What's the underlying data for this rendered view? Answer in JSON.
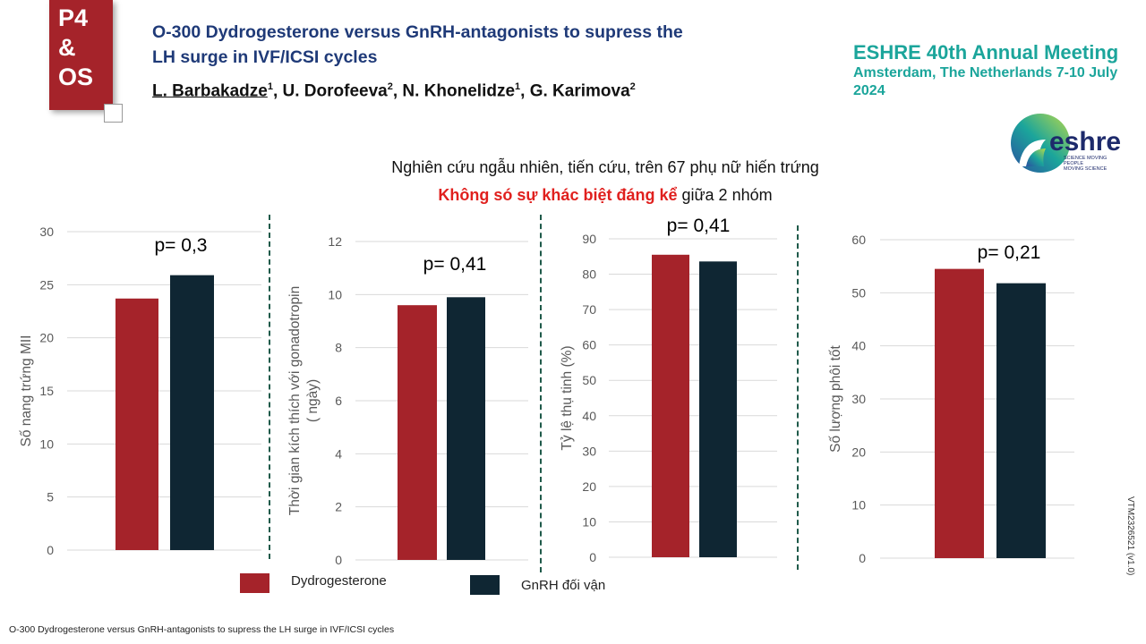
{
  "badge": {
    "line1": "P4",
    "line2": "&",
    "line3": "OS"
  },
  "title": {
    "line1": "O-300   Dydrogesterone versus GnRH-antagonists to supress the",
    "line2": "LH surge in IVF/ICSI cycles"
  },
  "authors": [
    {
      "name": "L. Barbakadze",
      "sup": "1"
    },
    {
      "name": "U. Dorofeeva",
      "sup": "2"
    },
    {
      "name": "N. Khonelidze",
      "sup": "1"
    },
    {
      "name": "G. Karimova",
      "sup": "2"
    }
  ],
  "conference": {
    "line1": "ESHRE 40th Annual Meeting",
    "line2": "Amsterdam, The Netherlands 7-10 July 2024"
  },
  "logo": {
    "word": "eshre",
    "tag1": "SCIENCE MOVING",
    "tag2": "PEOPLE",
    "tag3": "MOVING SCIENCE"
  },
  "subtitle": {
    "line1": "Nghiên cứu ngẫu nhiên, tiến cứu, trên 67 phụ nữ hiến trứng",
    "line2_red": "Không só sự khác biệt đáng kể",
    "line2_rest": " giữa 2 nhóm"
  },
  "colors": {
    "dydrogesterone": "#a5232a",
    "gnrh": "#0f2633",
    "grid": "#d9d9d9"
  },
  "legend": [
    {
      "label": "Dydrogesterone"
    },
    {
      "label": "GnRH  đối vận"
    }
  ],
  "footer": "O-300 Dydrogesterone versus GnRH-antagonists to supress the LH surge in IVF/ICSI cycles",
  "version_code": "VTM2326521 (v1.0)",
  "chart_data": [
    {
      "type": "bar",
      "ylabel": [
        "Số nang trứng MII"
      ],
      "ylim": [
        0,
        30
      ],
      "ticks": [
        0,
        5,
        10,
        15,
        20,
        25,
        30
      ],
      "annotation": "p= 0,3",
      "series": [
        {
          "name": "Dydrogesterone",
          "values": [
            23.7
          ]
        },
        {
          "name": "GnRH  đối vận",
          "values": [
            25.9
          ]
        }
      ]
    },
    {
      "type": "bar",
      "ylabel": [
        "Thời gian kích thích với gonadotropin",
        "( ngày)"
      ],
      "ylim": [
        0,
        12
      ],
      "ticks": [
        0,
        2,
        4,
        6,
        8,
        10,
        12
      ],
      "annotation": "p= 0,41",
      "series": [
        {
          "name": "Dydrogesterone",
          "values": [
            9.6
          ]
        },
        {
          "name": "GnRH  đối vận",
          "values": [
            9.9
          ]
        }
      ]
    },
    {
      "type": "bar",
      "ylabel": [
        "Tỷ lệ thụ tinh (%)"
      ],
      "ylim": [
        0,
        90
      ],
      "ticks": [
        0,
        10,
        20,
        30,
        40,
        50,
        60,
        70,
        80,
        90
      ],
      "annotation": "p= 0,41",
      "series": [
        {
          "name": "Dydrogesterone",
          "values": [
            85.5
          ]
        },
        {
          "name": "GnRH  đối vận",
          "values": [
            83.6
          ]
        }
      ]
    },
    {
      "type": "bar",
      "ylabel": [
        "Số lượng phôi tốt"
      ],
      "ylim": [
        0,
        60
      ],
      "ticks": [
        0,
        10,
        20,
        30,
        40,
        50,
        60
      ],
      "annotation": "p= 0,21",
      "series": [
        {
          "name": "Dydrogesterone",
          "values": [
            54.5
          ]
        },
        {
          "name": "GnRH  đối vận",
          "values": [
            51.8
          ]
        }
      ]
    }
  ]
}
